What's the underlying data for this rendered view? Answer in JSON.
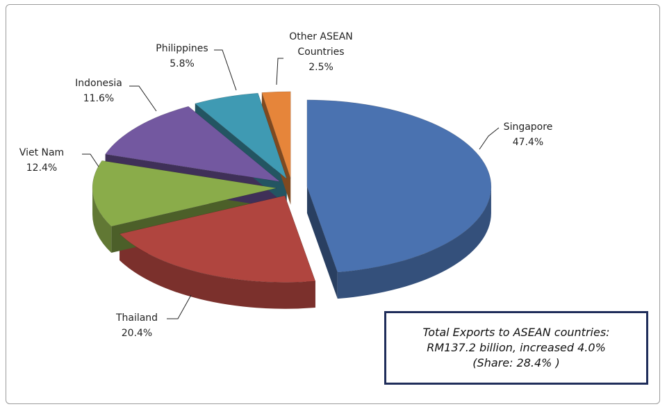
{
  "chart_data": {
    "type": "pie",
    "categories": [
      "Singapore",
      "Thailand",
      "Viet Nam",
      "Indonesia",
      "Philippines",
      "Other ASEAN Countries"
    ],
    "values": [
      47.4,
      20.4,
      12.4,
      11.6,
      5.8,
      2.5
    ],
    "value_labels": [
      "47.4%",
      "20.4%",
      "12.4%",
      "11.6%",
      "5.8%",
      "2.5%"
    ],
    "colors": [
      "#4a72b0",
      "#b0453f",
      "#8aac4a",
      "#7358a0",
      "#3f9ab3",
      "#e6853a"
    ],
    "annotation": [
      "Total Exports to ASEAN countries:",
      "RM137.2 billion, increased 4.0%",
      "(Share: 28.4% )"
    ]
  }
}
